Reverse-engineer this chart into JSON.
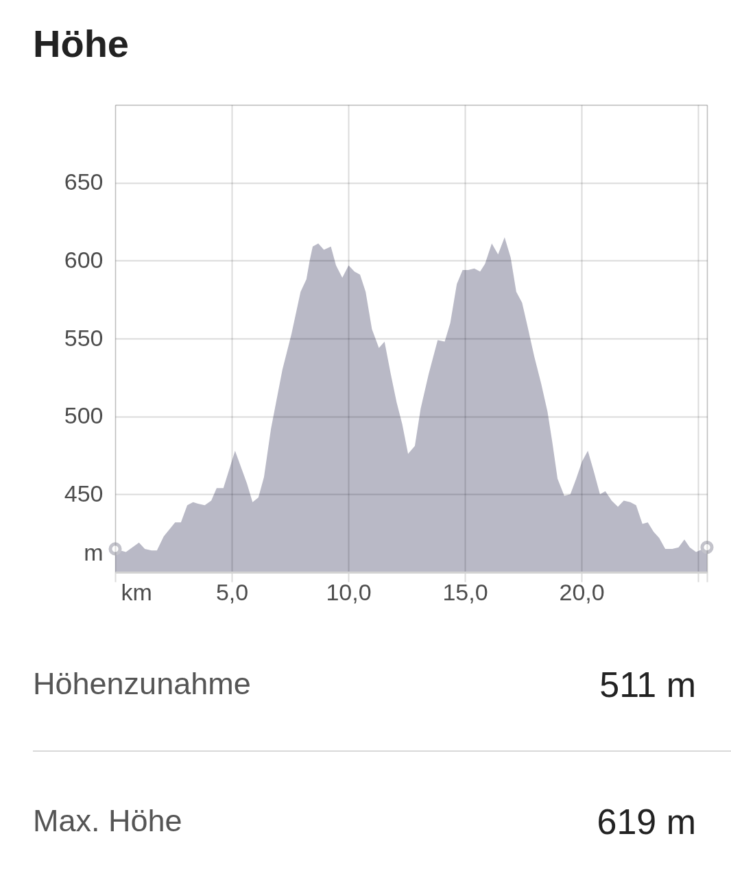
{
  "chart_data": {
    "type": "area",
    "title": "Höhe",
    "xlabel": "km",
    "ylabel": "m",
    "xlim": [
      0,
      25.38
    ],
    "ylim": [
      400,
      700
    ],
    "xticks": [
      {
        "value": 0,
        "label": null
      },
      {
        "value": 5,
        "label": "5,0"
      },
      {
        "value": 10,
        "label": "10,0"
      },
      {
        "value": 15,
        "label": "15,0"
      },
      {
        "value": 20,
        "label": "20,0"
      },
      {
        "value": 25,
        "label": null
      },
      {
        "value": 25.38,
        "label": null
      }
    ],
    "yticks": [
      450,
      500,
      550,
      600,
      650,
      {
        "value": 700,
        "label": null
      }
    ],
    "grid": true,
    "series": [
      {
        "color": "#b9b9c6",
        "x": [
          0,
          0.46,
          1.02,
          1.27,
          1.56,
          1.79,
          2.08,
          2.57,
          2.82,
          3.09,
          3.34,
          3.55,
          3.84,
          4.12,
          4.35,
          4.64,
          5.14,
          5.65,
          5.89,
          6.14,
          6.38,
          6.68,
          7.17,
          7.56,
          7.95,
          8.2,
          8.34,
          8.47,
          8.71,
          8.95,
          9.25,
          9.47,
          9.74,
          10.01,
          10.26,
          10.5,
          10.74,
          11.01,
          11.31,
          11.55,
          11.82,
          12.07,
          12.31,
          12.56,
          12.85,
          13.1,
          13.44,
          13.83,
          14.13,
          14.37,
          14.65,
          14.9,
          15.14,
          15.4,
          15.65,
          15.86,
          16.15,
          16.42,
          16.7,
          16.96,
          17.2,
          17.45,
          17.68,
          17.98,
          18.27,
          18.54,
          18.75,
          18.97,
          19.26,
          19.52,
          19.77,
          20.02,
          20.27,
          20.52,
          20.79,
          21.02,
          21.29,
          21.56,
          21.81,
          22.09,
          22.34,
          22.61,
          22.84,
          23.09,
          23.33,
          23.59,
          23.89,
          24.16,
          24.41,
          24.64,
          24.91,
          25.38
        ],
        "values": [
          415,
          413,
          419,
          415,
          414,
          414,
          423,
          432,
          432,
          443,
          445,
          444,
          443,
          446,
          454,
          454,
          478,
          457,
          445,
          448,
          461,
          492,
          530,
          553,
          580,
          588,
          600,
          609,
          611,
          607,
          609,
          597,
          589,
          597,
          593,
          591,
          580,
          556,
          544,
          548,
          527,
          509,
          495,
          476,
          481,
          505,
          527,
          549,
          548,
          560,
          585,
          594,
          594,
          595,
          593,
          598,
          611,
          604,
          615,
          602,
          580,
          573,
          558,
          538,
          521,
          503,
          483,
          460,
          449,
          450,
          460,
          471,
          478,
          465,
          450,
          452,
          446,
          442,
          446,
          445,
          443,
          431,
          432,
          426,
          422,
          415,
          415,
          416,
          421,
          416,
          413,
          416
        ]
      },
      {
        "type": "scatter",
        "color": "#c3c3cb",
        "marker": "circle",
        "x": [
          0,
          25.38
        ],
        "values": [
          415,
          416
        ]
      }
    ],
    "annotations": [
      "Höhenzunahme",
      "511 m",
      "Max. Höhe",
      "619 m"
    ]
  }
}
